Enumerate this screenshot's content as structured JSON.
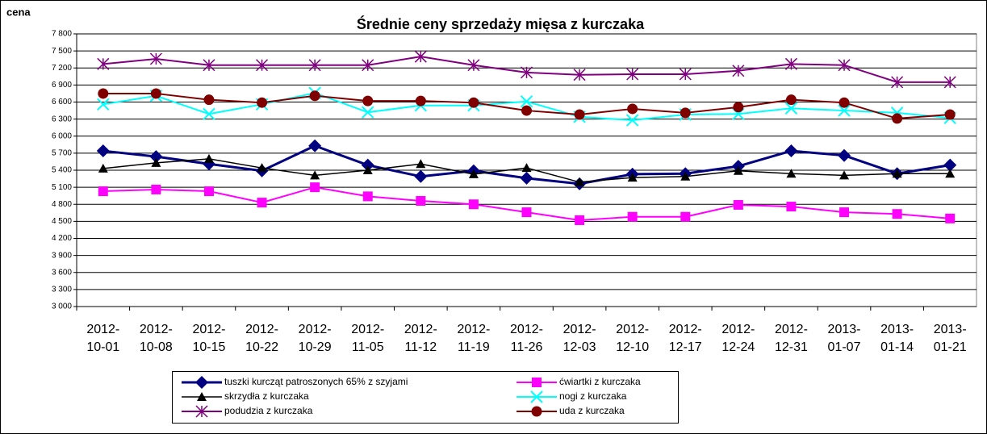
{
  "chart_data": {
    "type": "line",
    "title": "Średnie ceny sprzedaży mięsa z kurczaka",
    "y_label": "cena",
    "categories": [
      "2012-10-01",
      "2012-10-08",
      "2012-10-15",
      "2012-10-22",
      "2012-10-29",
      "2012-11-05",
      "2012-11-12",
      "2012-11-19",
      "2012-11-26",
      "2012-12-03",
      "2012-12-10",
      "2012-12-17",
      "2012-12-24",
      "2012-12-31",
      "2013-01-07",
      "2013-01-14",
      "2013-01-21"
    ],
    "ylim": [
      3000,
      7800
    ],
    "yticks": [
      {
        "value": 3000,
        "label": "3 000"
      },
      {
        "value": 3300,
        "label": "3 300"
      },
      {
        "value": 3600,
        "label": "3 600"
      },
      {
        "value": 3900,
        "label": "3 900"
      },
      {
        "value": 4200,
        "label": "4 200"
      },
      {
        "value": 4500,
        "label": "4 500"
      },
      {
        "value": 4800,
        "label": "4 800"
      },
      {
        "value": 5100,
        "label": "5 100"
      },
      {
        "value": 5400,
        "label": "5 400"
      },
      {
        "value": 5700,
        "label": "5 700"
      },
      {
        "value": 6000,
        "label": "6 000"
      },
      {
        "value": 6300,
        "label": "6 300"
      },
      {
        "value": 6600,
        "label": "6 600"
      },
      {
        "value": 6900,
        "label": "6 900"
      },
      {
        "value": 7200,
        "label": "7 200"
      },
      {
        "value": 7500,
        "label": "7 500"
      },
      {
        "value": 7800,
        "label": "7 800"
      }
    ],
    "grid": true,
    "series": [
      {
        "name": "tuszki kurcząt patroszonych 65% z szyjami",
        "color": "#000080",
        "marker": "diamond",
        "values": [
          5740,
          5640,
          5510,
          5390,
          5830,
          5490,
          5290,
          5390,
          5260,
          5160,
          5330,
          5340,
          5470,
          5740,
          5660,
          5340,
          5490
        ]
      },
      {
        "name": "ćwiartki z kurczaka",
        "color": "#ff00ff",
        "marker": "square",
        "values": [
          5030,
          5060,
          5030,
          4830,
          5100,
          4940,
          4860,
          4800,
          4660,
          4520,
          4580,
          4580,
          4790,
          4760,
          4660,
          4630,
          4550
        ]
      },
      {
        "name": "skrzydła z kurczaka",
        "color": "#000000",
        "marker": "triangle",
        "values": [
          5430,
          5530,
          5600,
          5440,
          5310,
          5400,
          5510,
          5330,
          5440,
          5190,
          5270,
          5290,
          5390,
          5340,
          5310,
          5340,
          5340
        ]
      },
      {
        "name": "nogi z kurczaka",
        "color": "#00ffff",
        "marker": "x",
        "values": [
          6560,
          6710,
          6390,
          6560,
          6760,
          6420,
          6540,
          6540,
          6610,
          6340,
          6280,
          6380,
          6390,
          6490,
          6450,
          6410,
          6320
        ]
      },
      {
        "name": "podudzia z kurczaka",
        "color": "#800080",
        "marker": "star",
        "values": [
          7270,
          7360,
          7250,
          7250,
          7250,
          7250,
          7400,
          7250,
          7120,
          7080,
          7090,
          7090,
          7150,
          7270,
          7250,
          6950,
          6950
        ]
      },
      {
        "name": "uda z kurczaka",
        "color": "#800000",
        "marker": "circle",
        "values": [
          6750,
          6750,
          6640,
          6590,
          6710,
          6620,
          6620,
          6590,
          6450,
          6380,
          6480,
          6410,
          6510,
          6640,
          6590,
          6310,
          6380
        ]
      }
    ]
  }
}
